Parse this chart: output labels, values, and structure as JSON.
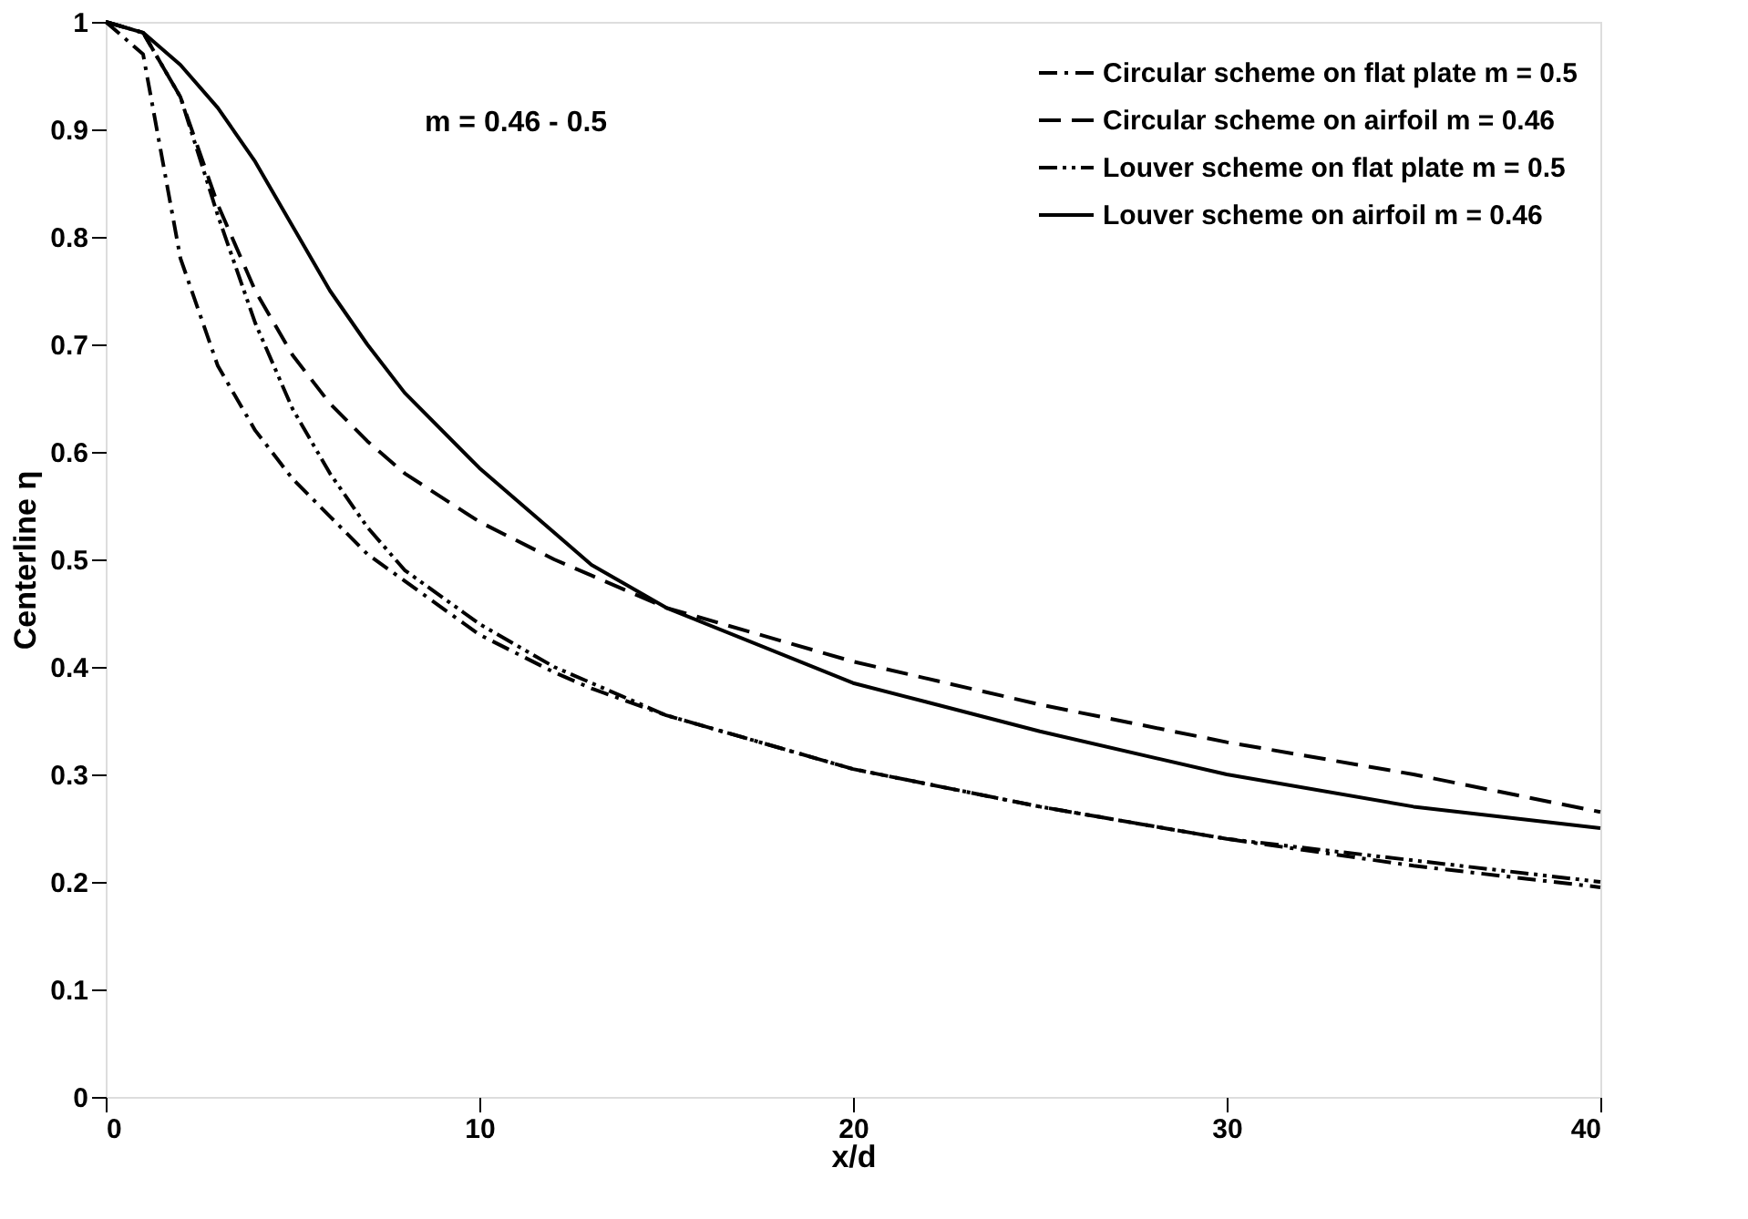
{
  "chart_data": {
    "type": "line",
    "xlabel": "x/d",
    "ylabel": "Centerline η",
    "annotations": [
      "m = 0.46 - 0.5"
    ],
    "xlim": [
      0,
      40
    ],
    "xticks": [
      0,
      10,
      20,
      30,
      40
    ],
    "ylim": [
      0,
      1
    ],
    "yticks": [
      0,
      0.1,
      0.2,
      0.3,
      0.4,
      0.5,
      0.6,
      0.7,
      0.8,
      0.9,
      1
    ],
    "grid": false,
    "legend": "top right",
    "marker": "none",
    "x": [
      0,
      1,
      2,
      3,
      4,
      5,
      6,
      7,
      8,
      10,
      12,
      13,
      15,
      20,
      25,
      30,
      35,
      40
    ],
    "series": [
      {
        "name": "Circular scheme on flat plate m = 0.5",
        "color": "#000000",
        "line_style": "dashdot",
        "values": [
          1.0,
          0.97,
          0.78,
          0.68,
          0.62,
          0.575,
          0.54,
          0.505,
          0.48,
          0.43,
          0.395,
          0.38,
          0.355,
          0.305,
          0.27,
          0.24,
          0.215,
          0.195
        ]
      },
      {
        "name": "Circular scheme on airfoil m = 0.46",
        "color": "#000000",
        "line_style": "dashed",
        "values": [
          1.0,
          0.99,
          0.93,
          0.83,
          0.75,
          0.69,
          0.645,
          0.61,
          0.58,
          0.535,
          0.5,
          0.485,
          0.455,
          0.405,
          0.365,
          0.33,
          0.3,
          0.265
        ]
      },
      {
        "name": "Louver scheme on flat plate m = 0.5",
        "color": "#000000",
        "line_style": "dashdotdot",
        "values": [
          1.0,
          0.99,
          0.93,
          0.82,
          0.72,
          0.64,
          0.58,
          0.53,
          0.49,
          0.44,
          0.4,
          0.385,
          0.355,
          0.305,
          0.27,
          0.24,
          0.22,
          0.2
        ]
      },
      {
        "name": "Louver scheme on airfoil m = 0.46",
        "color": "#000000",
        "line_style": "solid",
        "values": [
          1.0,
          0.99,
          0.96,
          0.92,
          0.87,
          0.81,
          0.75,
          0.7,
          0.655,
          0.585,
          0.525,
          0.495,
          0.455,
          0.385,
          0.34,
          0.3,
          0.27,
          0.25
        ]
      }
    ]
  }
}
